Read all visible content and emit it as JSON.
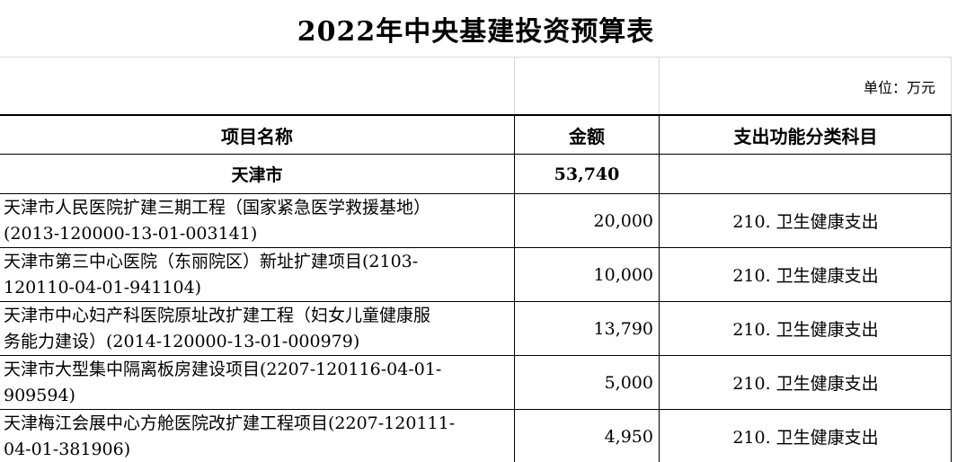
{
  "page": {
    "title": "2022年中央基建投资预算表",
    "unit_label": "单位：万元"
  },
  "table": {
    "columns": {
      "project_name": "项目名称",
      "amount": "金额",
      "category": "支出功能分类科目"
    },
    "summary_row": {
      "name": "天津市",
      "amount": "53,740",
      "category": ""
    },
    "rows": [
      {
        "name": "天津市人民医院扩建三期工程（国家紧急医学救援基地）\n(2013-120000-13-01-003141)",
        "amount": "20,000",
        "category": "210. 卫生健康支出"
      },
      {
        "name": "天津市第三中心医院（东丽院区）新址扩建项目(2103-\n120110-04-01-941104)",
        "amount": "10,000",
        "category": "210. 卫生健康支出"
      },
      {
        "name": "天津市中心妇产科医院原址改扩建工程（妇女儿童健康服\n务能力建设）(2014-120000-13-01-000979)",
        "amount": "13,790",
        "category": "210. 卫生健康支出"
      },
      {
        "name": "天津市大型集中隔离板房建设项目(2207-120116-04-01-\n909594)",
        "amount": "5,000",
        "category": "210. 卫生健康支出"
      },
      {
        "name": "天津梅江会展中心方舱医院改扩建工程项目(2207-120111-\n04-01-381906)",
        "amount": "4,950",
        "category": "210. 卫生健康支出"
      }
    ]
  }
}
